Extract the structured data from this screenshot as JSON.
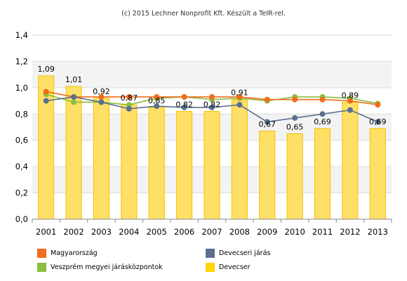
{
  "credit": "(c) 2015 Lechner Nonprofit Kft. Készült a TeIR-rel.",
  "chart_data": {
    "type": "bar",
    "title": "",
    "xlabel": "",
    "ylabel": "",
    "ylim": [
      0,
      1.4
    ],
    "y_ticks": [
      "0,0",
      "0,2",
      "0,4",
      "0,6",
      "0,8",
      "1,0",
      "1,2",
      "1,4"
    ],
    "y_tick_values": [
      0,
      0.2,
      0.4,
      0.6,
      0.8,
      1.0,
      1.2,
      1.4
    ],
    "grid": true,
    "legend_position": "bottom",
    "categories": [
      "2001",
      "2002",
      "2003",
      "2004",
      "2005",
      "2006",
      "2007",
      "2008",
      "2009",
      "2010",
      "2011",
      "2012",
      "2013"
    ],
    "bars": {
      "name": "Devecser",
      "color": "#FFE066",
      "stroke": "#F2C200",
      "values": [
        1.09,
        1.01,
        0.92,
        0.87,
        0.85,
        0.82,
        0.82,
        0.91,
        0.67,
        0.65,
        0.69,
        0.89,
        0.69
      ],
      "labels": [
        "1,09",
        "1,01",
        "0,92",
        "0,87",
        "0,85",
        "0,82",
        "0,82",
        "0,91",
        "0,67",
        "0,65",
        "0,69",
        "0,89",
        "0,69"
      ]
    },
    "series": [
      {
        "name": "Magyarország",
        "type": "line",
        "color": "#F26B1D",
        "values": [
          0.97,
          0.93,
          0.93,
          0.93,
          0.93,
          0.93,
          0.93,
          0.93,
          0.91,
          0.91,
          0.91,
          0.9,
          0.87
        ]
      },
      {
        "name": "Devecseri járás",
        "type": "line",
        "color": "#5A7090",
        "values": [
          0.9,
          0.93,
          0.89,
          0.84,
          0.86,
          0.85,
          0.85,
          0.87,
          0.74,
          0.77,
          0.8,
          0.83,
          0.74
        ]
      },
      {
        "name": "Veszprém megyei járásközpontok",
        "type": "line",
        "color": "#8BBF3F",
        "values": [
          0.95,
          0.89,
          0.89,
          0.87,
          0.92,
          0.93,
          0.91,
          0.92,
          0.9,
          0.93,
          0.93,
          0.92,
          0.88
        ]
      }
    ]
  },
  "legend": [
    {
      "label": "Magyarország",
      "color": "#F26B1D"
    },
    {
      "label": "Devecseri járás",
      "color": "#5A7090"
    },
    {
      "label": "Veszprém megyei járásközpontok",
      "color": "#8BBF3F"
    },
    {
      "label": "Devecser",
      "color": "#FFD400"
    }
  ]
}
